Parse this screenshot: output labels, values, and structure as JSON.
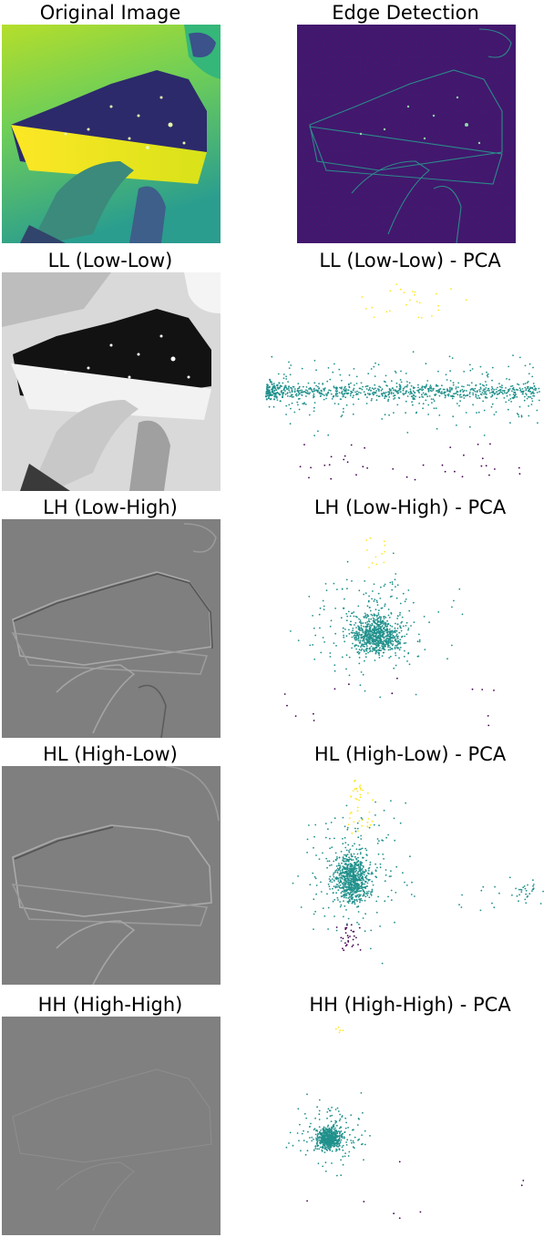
{
  "figure": {
    "panels": [
      {
        "title": "Original Image",
        "kind": "image",
        "style": "viridis"
      },
      {
        "title": "Edge Detection",
        "kind": "image",
        "style": "viridis-edges"
      },
      {
        "title": "LL (Low-Low)",
        "kind": "image",
        "style": "grayscale"
      },
      {
        "title": "LL (Low-Low) - PCA",
        "kind": "scatter",
        "colormap": "viridis"
      },
      {
        "title": "LH (Low-High)",
        "kind": "image",
        "style": "gray-relief"
      },
      {
        "title": "LH (Low-High) - PCA",
        "kind": "scatter",
        "colormap": "viridis"
      },
      {
        "title": "HL (High-Low)",
        "kind": "image",
        "style": "gray-relief"
      },
      {
        "title": "HL (High-Low) - PCA",
        "kind": "scatter",
        "colormap": "viridis"
      },
      {
        "title": "HH (High-High)",
        "kind": "image",
        "style": "gray-flat"
      },
      {
        "title": "HH (High-High) - PCA",
        "kind": "scatter",
        "colormap": "viridis"
      }
    ],
    "colors": {
      "viridis_dark": "#440154",
      "viridis_mid": "#21918c",
      "viridis_light": "#fde725",
      "relief_gray": "#7f7f7f"
    }
  }
}
